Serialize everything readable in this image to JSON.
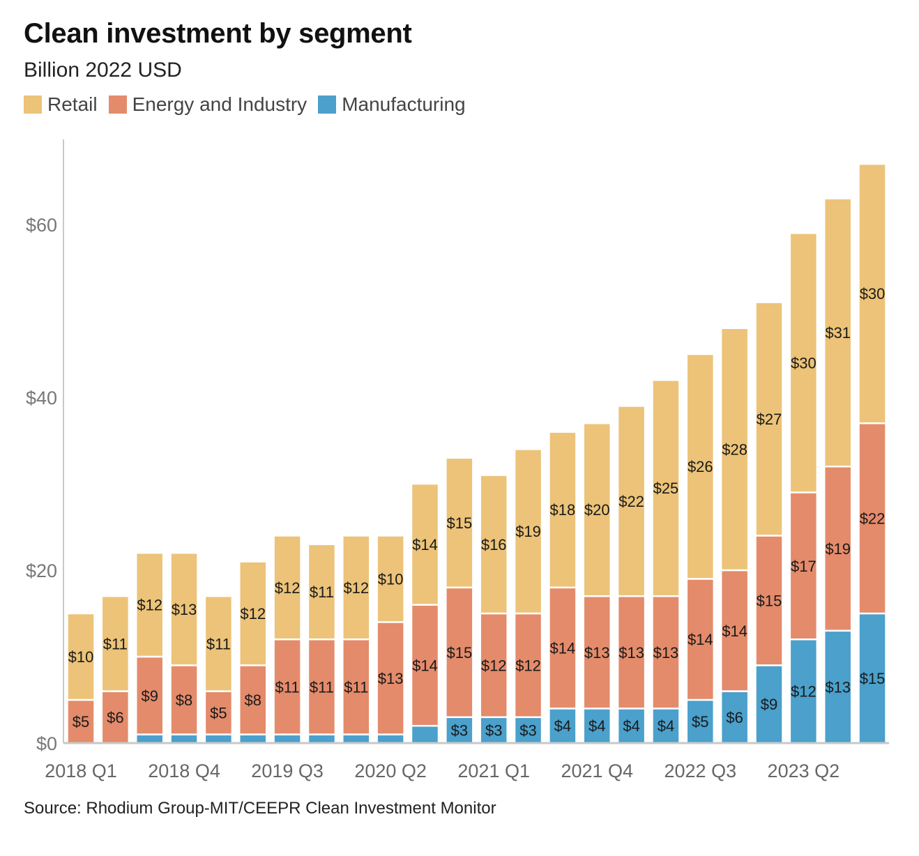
{
  "header": {
    "title": "Clean investment by segment",
    "subtitle": "Billion 2022 USD"
  },
  "footer": {
    "source": "Source: Rhodium Group-MIT/CEEPR Clean Investment Monitor"
  },
  "colors": {
    "Retail": "#ecc378",
    "Energy and Industry": "#e48b6b",
    "Manufacturing": "#4ba0cc"
  },
  "chart_data": {
    "type": "bar",
    "stacked": true,
    "title": "Clean investment by segment",
    "subtitle": "Billion 2022 USD",
    "categories": [
      "2018 Q1",
      "2018 Q2",
      "2018 Q3",
      "2018 Q4",
      "2019 Q1",
      "2019 Q2",
      "2019 Q3",
      "2019 Q4",
      "2020 Q1",
      "2020 Q2",
      "2020 Q3",
      "2020 Q4",
      "2021 Q1",
      "2021 Q2",
      "2021 Q3",
      "2021 Q4",
      "2022 Q1",
      "2022 Q2",
      "2022 Q3",
      "2022 Q4",
      "2023 Q1",
      "2023 Q2",
      "2023 Q3",
      "2023 Q4"
    ],
    "x_tick_labels": [
      "2018 Q1",
      "2018 Q4",
      "2019 Q3",
      "2020 Q2",
      "2021 Q1",
      "2021 Q4",
      "2022 Q3",
      "2023 Q2"
    ],
    "series": [
      {
        "name": "Manufacturing",
        "values": [
          0,
          0,
          1,
          1,
          1,
          1,
          1,
          1,
          1,
          1,
          2,
          3,
          3,
          3,
          4,
          4,
          4,
          4,
          5,
          6,
          9,
          12,
          13,
          15
        ],
        "labels": [
          "",
          "",
          "",
          "",
          "",
          "",
          "",
          "",
          "",
          "",
          "",
          "$3",
          "$3",
          "$3",
          "$4",
          "$4",
          "$4",
          "$4",
          "$5",
          "$6",
          "$9",
          "$12",
          "$13",
          "$15"
        ]
      },
      {
        "name": "Energy and Industry",
        "values": [
          5,
          6,
          9,
          8,
          5,
          8,
          11,
          11,
          11,
          13,
          14,
          15,
          12,
          12,
          14,
          13,
          13,
          13,
          14,
          14,
          15,
          17,
          19,
          22
        ],
        "labels": [
          "$5",
          "$6",
          "$9",
          "$8",
          "$5",
          "$8",
          "$11",
          "$11",
          "$11",
          "$13",
          "$14",
          "$15",
          "$12",
          "$12",
          "$14",
          "$13",
          "$13",
          "$13",
          "$14",
          "$14",
          "$15",
          "$17",
          "$19",
          "$22"
        ]
      },
      {
        "name": "Retail",
        "values": [
          10,
          11,
          12,
          13,
          11,
          12,
          12,
          11,
          12,
          10,
          14,
          15,
          16,
          19,
          18,
          20,
          22,
          25,
          26,
          28,
          27,
          30,
          31,
          30
        ],
        "labels": [
          "$10",
          "$11",
          "$12",
          "$13",
          "$11",
          "$12",
          "$12",
          "$11",
          "$12",
          "$10",
          "$14",
          "$15",
          "$16",
          "$19",
          "$18",
          "$20",
          "$22",
          "$25",
          "$26",
          "$28",
          "$27",
          "$30",
          "$31",
          "$30"
        ]
      }
    ],
    "legend_order": [
      "Retail",
      "Energy and Industry",
      "Manufacturing"
    ],
    "y_ticks": [
      {
        "value": 0,
        "label": "$0"
      },
      {
        "value": 20,
        "label": "$20"
      },
      {
        "value": 40,
        "label": "$40"
      },
      {
        "value": 60,
        "label": "$60"
      }
    ],
    "ylim": [
      0,
      70
    ],
    "xlabel": "",
    "ylabel": "",
    "grid": false,
    "legend_position": "top-left"
  }
}
